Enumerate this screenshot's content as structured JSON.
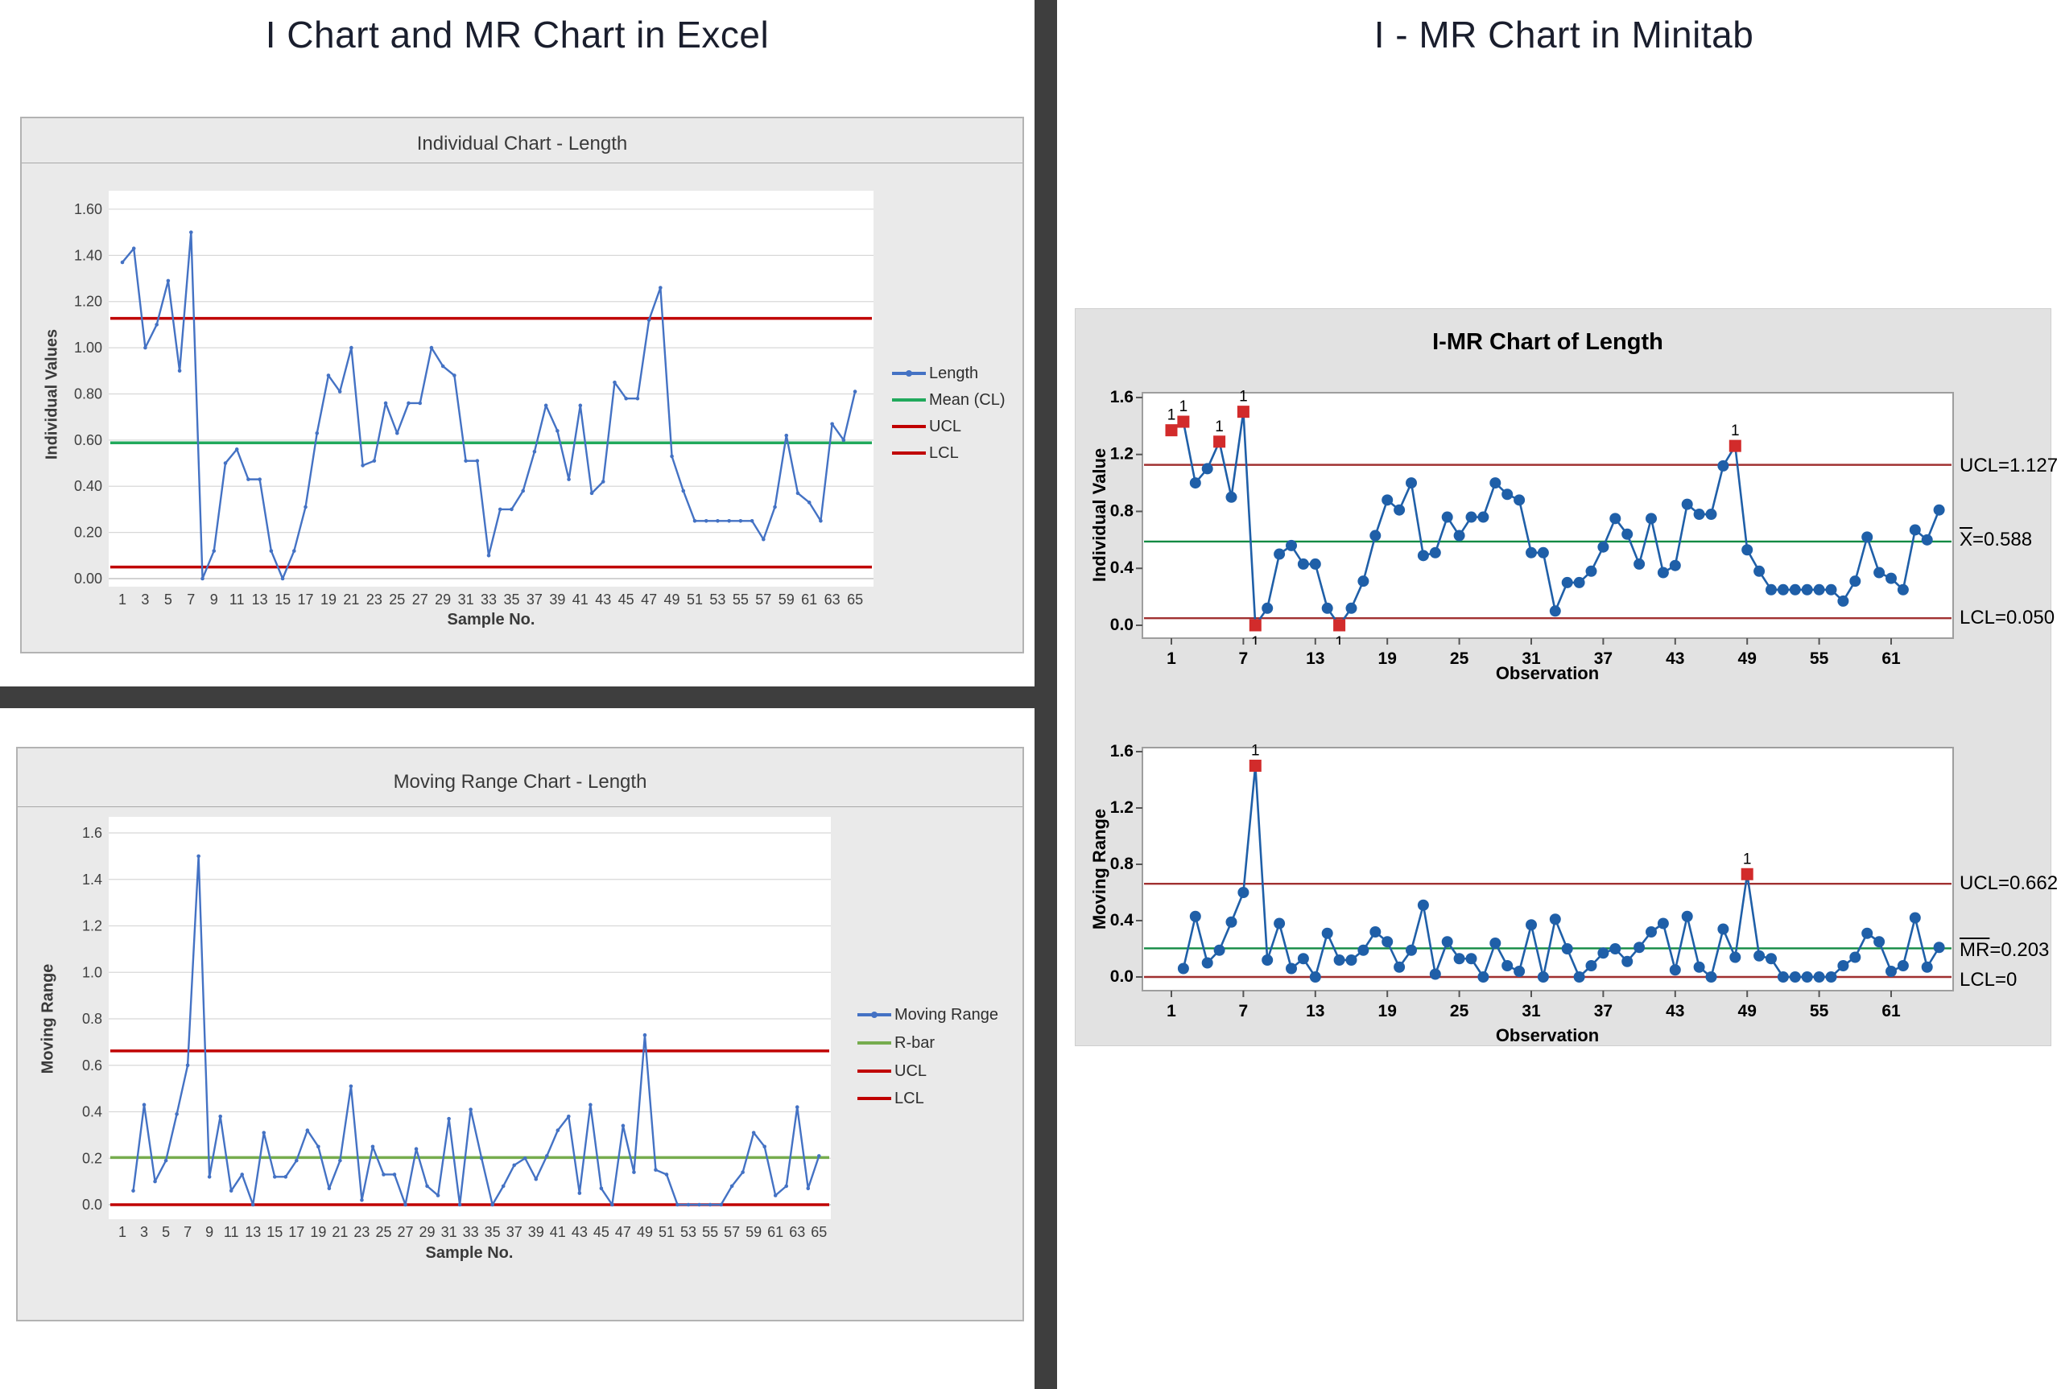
{
  "left_panel": {
    "title": "I Chart and MR Chart in Excel"
  },
  "right_panel": {
    "title": "I - MR Chart in Minitab"
  },
  "minitab": {
    "panel_title": "I-MR Chart of Length"
  },
  "colors": {
    "excel_series_blue": "#4472C4",
    "excel_mean_green": "#21A95C",
    "excel_rbar_green": "#76AC4E",
    "excel_limit_red": "#C00000",
    "minitab_series_blue": "#1F5FA8",
    "minitab_center_green": "#128A43",
    "minitab_limit_maroon": "#A03030",
    "minitab_flag_red": "#D22B2B",
    "divider_gray": "#3E3E3E"
  },
  "chart_data": [
    {
      "id": "excel_individual",
      "type": "line",
      "title": "Individual Chart - Length",
      "ylabel": "Individual Values",
      "xlabel": "Sample No.",
      "ylim": [
        0,
        1.6
      ],
      "yticks": [
        "1.60",
        "1.40",
        "1.20",
        "1.00",
        "0.80",
        "0.60",
        "0.40",
        "0.20",
        "0.00"
      ],
      "xticks": [
        1,
        3,
        5,
        7,
        9,
        11,
        13,
        15,
        17,
        19,
        21,
        23,
        25,
        27,
        29,
        31,
        33,
        35,
        37,
        39,
        41,
        43,
        45,
        47,
        49,
        51,
        53,
        55,
        57,
        59,
        61,
        63,
        65
      ],
      "grid": true,
      "x_start": 1,
      "series": [
        {
          "name": "Length",
          "color": "#4472C4",
          "values": [
            1.37,
            1.43,
            1.0,
            1.1,
            1.29,
            0.9,
            1.5,
            0.0,
            0.12,
            0.5,
            0.56,
            0.43,
            0.43,
            0.12,
            0.0,
            0.12,
            0.31,
            0.63,
            0.88,
            0.81,
            1.0,
            0.49,
            0.51,
            0.76,
            0.63,
            0.76,
            0.76,
            1.0,
            0.92,
            0.88,
            0.51,
            0.51,
            0.1,
            0.3,
            0.3,
            0.38,
            0.55,
            0.75,
            0.64,
            0.43,
            0.75,
            0.37,
            0.42,
            0.85,
            0.78,
            0.78,
            1.12,
            1.26,
            0.53,
            0.38,
            0.25,
            0.25,
            0.25,
            0.25,
            0.25,
            0.25,
            0.17,
            0.31,
            0.62,
            0.37,
            0.33,
            0.25,
            0.67,
            0.6,
            0.81
          ]
        }
      ],
      "ref_lines": [
        {
          "name": "Mean (CL)",
          "value": 0.588,
          "color": "#21A95C"
        },
        {
          "name": "UCL",
          "value": 1.127,
          "color": "#C00000"
        },
        {
          "name": "LCL",
          "value": 0.05,
          "color": "#C00000"
        }
      ],
      "legend": [
        {
          "label": "Length",
          "color": "#4472C4",
          "marker": true
        },
        {
          "label": "Mean (CL)",
          "color": "#21A95C",
          "marker": false
        },
        {
          "label": "UCL",
          "color": "#C00000",
          "marker": false
        },
        {
          "label": "LCL",
          "color": "#C00000",
          "marker": false
        }
      ]
    },
    {
      "id": "excel_moving_range",
      "type": "line",
      "title": "Moving Range Chart - Length",
      "ylabel": "Moving Range",
      "xlabel": "Sample No.",
      "ylim": [
        0,
        1.6
      ],
      "yticks": [
        "1.6",
        "1.4",
        "1.2",
        "1.0",
        "0.8",
        "0.6",
        "0.4",
        "0.2",
        "0.0"
      ],
      "xticks": [
        1,
        3,
        5,
        7,
        9,
        11,
        13,
        15,
        17,
        19,
        21,
        23,
        25,
        27,
        29,
        31,
        33,
        35,
        37,
        39,
        41,
        43,
        45,
        47,
        49,
        51,
        53,
        55,
        57,
        59,
        61,
        63,
        65
      ],
      "grid": true,
      "x_start": 2,
      "series": [
        {
          "name": "Moving Range",
          "color": "#4472C4",
          "values": [
            0.06,
            0.43,
            0.1,
            0.19,
            0.39,
            0.6,
            1.5,
            0.12,
            0.38,
            0.06,
            0.13,
            0.0,
            0.31,
            0.12,
            0.12,
            0.19,
            0.32,
            0.25,
            0.07,
            0.19,
            0.51,
            0.02,
            0.25,
            0.13,
            0.13,
            0.0,
            0.24,
            0.08,
            0.04,
            0.37,
            0.0,
            0.41,
            0.2,
            0.0,
            0.08,
            0.17,
            0.2,
            0.11,
            0.21,
            0.32,
            0.38,
            0.05,
            0.43,
            0.07,
            0.0,
            0.34,
            0.14,
            0.73,
            0.15,
            0.13,
            0.0,
            0.0,
            0.0,
            0.0,
            0.0,
            0.08,
            0.14,
            0.31,
            0.25,
            0.04,
            0.08,
            0.42,
            0.07,
            0.21
          ]
        }
      ],
      "ref_lines": [
        {
          "name": "R-bar",
          "value": 0.203,
          "color": "#76AC4E"
        },
        {
          "name": "UCL",
          "value": 0.662,
          "color": "#C00000"
        },
        {
          "name": "LCL",
          "value": 0.0,
          "color": "#C00000"
        }
      ],
      "legend": [
        {
          "label": "Moving Range",
          "color": "#4472C4",
          "marker": true
        },
        {
          "label": "R-bar",
          "color": "#76AC4E",
          "marker": false
        },
        {
          "label": "UCL",
          "color": "#C00000",
          "marker": false
        },
        {
          "label": "LCL",
          "color": "#C00000",
          "marker": false
        }
      ]
    },
    {
      "id": "minitab_individual",
      "type": "line",
      "title": "I-MR Chart of Length",
      "ylabel": "Individual Value",
      "xlabel": "Observation",
      "ylim": [
        0,
        1.6
      ],
      "yticks": [
        "1.6",
        "1.2",
        "0.8",
        "0.4",
        "0.0"
      ],
      "xticks": [
        1,
        7,
        13,
        19,
        25,
        31,
        37,
        43,
        49,
        55,
        61
      ],
      "grid": false,
      "x_start": 1,
      "series": [
        {
          "name": "Individual Value",
          "color": "#1F5FA8",
          "values": [
            1.37,
            1.43,
            1.0,
            1.1,
            1.29,
            0.9,
            1.5,
            0.0,
            0.12,
            0.5,
            0.56,
            0.43,
            0.43,
            0.12,
            0.0,
            0.12,
            0.31,
            0.63,
            0.88,
            0.81,
            1.0,
            0.49,
            0.51,
            0.76,
            0.63,
            0.76,
            0.76,
            1.0,
            0.92,
            0.88,
            0.51,
            0.51,
            0.1,
            0.3,
            0.3,
            0.38,
            0.55,
            0.75,
            0.64,
            0.43,
            0.75,
            0.37,
            0.42,
            0.85,
            0.78,
            0.78,
            1.12,
            1.26,
            0.53,
            0.38,
            0.25,
            0.25,
            0.25,
            0.25,
            0.25,
            0.25,
            0.17,
            0.31,
            0.62,
            0.37,
            0.33,
            0.25,
            0.67,
            0.6,
            0.81
          ]
        }
      ],
      "ref_lines": [
        {
          "name": "center",
          "value": 0.588,
          "color": "#128A43"
        },
        {
          "name": "UCL",
          "value": 1.127,
          "color": "#A03030"
        },
        {
          "name": "LCL",
          "value": 0.05,
          "color": "#A03030"
        }
      ],
      "limit_labels": {
        "ucl": "UCL=1.127",
        "center_bar": "X",
        "center_rest": "=0.588",
        "lcl": "LCL=0.050"
      },
      "flag_label": "1",
      "flag_color": "#D22B2B",
      "flagged_above": [
        1,
        2,
        5,
        7,
        48
      ],
      "flagged_below": [
        8,
        15
      ]
    },
    {
      "id": "minitab_moving_range",
      "type": "line",
      "title": "I-MR Chart of Length",
      "ylabel": "Moving Range",
      "xlabel": "Observation",
      "ylim": [
        0,
        1.6
      ],
      "yticks": [
        "1.6",
        "1.2",
        "0.8",
        "0.4",
        "0.0"
      ],
      "xticks": [
        1,
        7,
        13,
        19,
        25,
        31,
        37,
        43,
        49,
        55,
        61
      ],
      "grid": false,
      "x_start": 2,
      "series": [
        {
          "name": "Moving Range",
          "color": "#1F5FA8",
          "values": [
            0.06,
            0.43,
            0.1,
            0.19,
            0.39,
            0.6,
            1.5,
            0.12,
            0.38,
            0.06,
            0.13,
            0.0,
            0.31,
            0.12,
            0.12,
            0.19,
            0.32,
            0.25,
            0.07,
            0.19,
            0.51,
            0.02,
            0.25,
            0.13,
            0.13,
            0.0,
            0.24,
            0.08,
            0.04,
            0.37,
            0.0,
            0.41,
            0.2,
            0.0,
            0.08,
            0.17,
            0.2,
            0.11,
            0.21,
            0.32,
            0.38,
            0.05,
            0.43,
            0.07,
            0.0,
            0.34,
            0.14,
            0.73,
            0.15,
            0.13,
            0.0,
            0.0,
            0.0,
            0.0,
            0.0,
            0.08,
            0.14,
            0.31,
            0.25,
            0.04,
            0.08,
            0.42,
            0.07,
            0.21
          ]
        }
      ],
      "ref_lines": [
        {
          "name": "center",
          "value": 0.203,
          "color": "#128A43"
        },
        {
          "name": "UCL",
          "value": 0.662,
          "color": "#A03030"
        },
        {
          "name": "LCL",
          "value": 0.0,
          "color": "#A03030"
        }
      ],
      "limit_labels": {
        "ucl": "UCL=0.662",
        "center_bar": "MR",
        "center_rest": "=0.203",
        "lcl": "LCL=0"
      },
      "flag_label": "1",
      "flag_color": "#D22B2B",
      "flagged_above": [
        8,
        49
      ],
      "flagged_below": []
    }
  ]
}
